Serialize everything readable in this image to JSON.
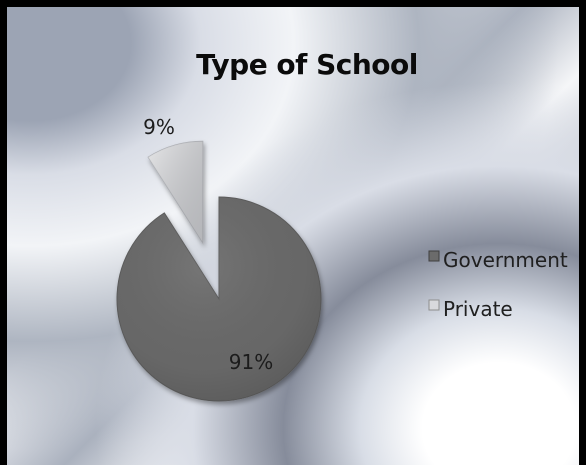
{
  "chart_data": {
    "type": "pie",
    "title": "Type of School",
    "categories": [
      "Government",
      "Private"
    ],
    "values": [
      91,
      9
    ],
    "value_labels": [
      "91%",
      "9%"
    ],
    "colors": [
      "#6b6b6b",
      "#c8c9cc"
    ],
    "legend_position": "right",
    "exploded_slice": "Private"
  }
}
